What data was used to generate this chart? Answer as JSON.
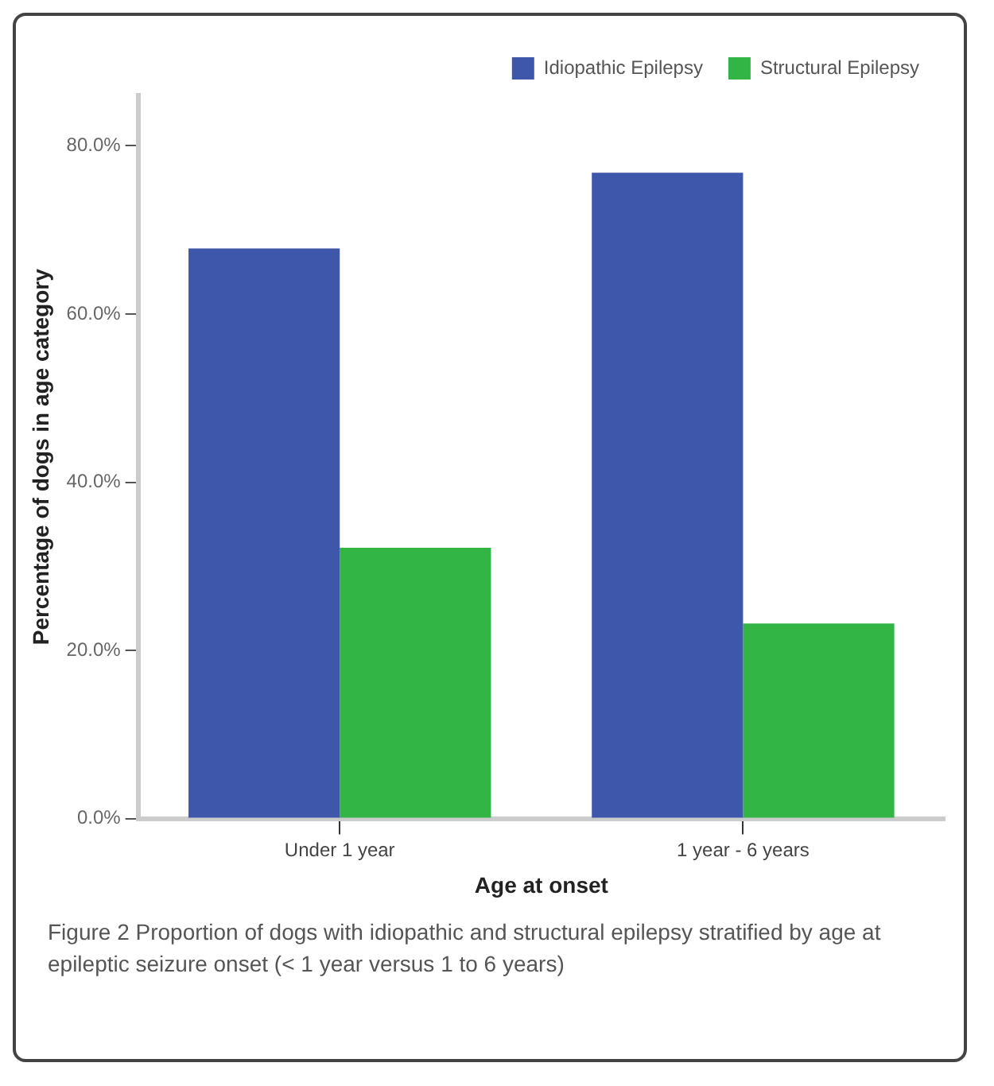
{
  "chart_data": {
    "type": "bar",
    "xlabel": "Age at onset",
    "ylabel": "Percentage of dogs in age category",
    "categories": [
      "Under 1 year",
      "1 year - 6 years"
    ],
    "series": [
      {
        "name": "Idiopathic Epilepsy",
        "color": "#3f57ab",
        "values": [
          67.8,
          76.8
        ]
      },
      {
        "name": "Structural Epilepsy",
        "color": "#33b546",
        "values": [
          32.2,
          23.2
        ]
      }
    ],
    "ylim": [
      0,
      86
    ],
    "yticks": [
      {
        "value": 0,
        "label": "0.0%"
      },
      {
        "value": 20,
        "label": "20.0%"
      },
      {
        "value": 40,
        "label": "40.0%"
      },
      {
        "value": 60,
        "label": "60.0%"
      },
      {
        "value": 80,
        "label": "80.0%"
      }
    ],
    "legend": "top",
    "grid": false,
    "annotations": [
      "Figure 2 Proportion of dogs with idiopathic and structural epilepsy stratified by age at epileptic seizure onset (< 1 year versus 1 to 6 years)"
    ]
  }
}
